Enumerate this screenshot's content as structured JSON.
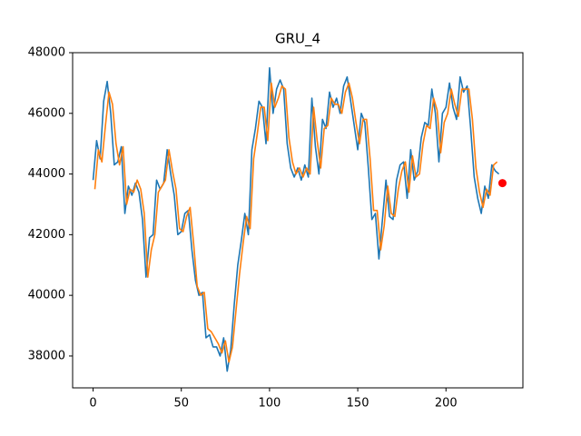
{
  "chart_data": {
    "type": "line",
    "title": "GRU_4",
    "xlim": [
      -11.6,
      243.6
    ],
    "xticks": [
      0,
      50,
      100,
      150,
      200
    ],
    "ylim": [
      36950,
      48000
    ],
    "yticks": [
      38000,
      40000,
      42000,
      44000,
      46000,
      48000
    ],
    "series": [
      {
        "color": "#1f77b4",
        "x": [
          0,
          2,
          4,
          6,
          8,
          10,
          12,
          14,
          16,
          18,
          20,
          22,
          24,
          26,
          28,
          30,
          32,
          34,
          36,
          38,
          40,
          42,
          44,
          46,
          48,
          50,
          52,
          54,
          56,
          58,
          60,
          62,
          64,
          66,
          68,
          70,
          72,
          74,
          76,
          78,
          80,
          82,
          84,
          86,
          88,
          90,
          92,
          94,
          96,
          98,
          100,
          102,
          104,
          106,
          108,
          110,
          112,
          114,
          116,
          118,
          120,
          122,
          124,
          126,
          128,
          130,
          132,
          134,
          136,
          138,
          140,
          142,
          144,
          146,
          148,
          150,
          152,
          154,
          156,
          158,
          160,
          162,
          164,
          166,
          168,
          170,
          172,
          174,
          176,
          178,
          180,
          182,
          184,
          186,
          188,
          190,
          192,
          194,
          196,
          198,
          200,
          202,
          204,
          206,
          208,
          210,
          212,
          214,
          216,
          218,
          220,
          222,
          224,
          226,
          228,
          230
        ],
        "values": [
          43800,
          45100,
          44500,
          46400,
          47050,
          46000,
          44300,
          44400,
          44900,
          42700,
          43600,
          43300,
          43700,
          43400,
          42500,
          40600,
          41900,
          42000,
          43800,
          43500,
          43700,
          44800,
          44000,
          43300,
          42000,
          42100,
          42700,
          42800,
          41500,
          40500,
          40000,
          40100,
          38600,
          38700,
          38300,
          38300,
          38000,
          38600,
          37500,
          38200,
          39700,
          41000,
          41800,
          42700,
          42000,
          44800,
          45500,
          46400,
          46200,
          45000,
          47500,
          46000,
          46800,
          47100,
          46800,
          45000,
          44200,
          43900,
          44200,
          43800,
          44300,
          43900,
          46500,
          44900,
          44000,
          45800,
          45500,
          46700,
          46200,
          46500,
          46000,
          46900,
          47200,
          46400,
          45600,
          44800,
          46000,
          45700,
          44200,
          42500,
          42700,
          41200,
          42500,
          43800,
          42600,
          42500,
          43800,
          44300,
          44400,
          43200,
          44800,
          43800,
          44100,
          45200,
          45700,
          45600,
          46800,
          46000,
          44400,
          46000,
          46200,
          47000,
          46200,
          45800,
          47200,
          46700,
          46900,
          45500,
          43900,
          43200,
          42700,
          43600,
          43200,
          44300,
          44100,
          44000
        ]
      },
      {
        "color": "#ff7f0e",
        "x": [
          1,
          3,
          5,
          7,
          9,
          11,
          13,
          15,
          17,
          19,
          21,
          23,
          25,
          27,
          29,
          31,
          33,
          35,
          37,
          39,
          41,
          43,
          45,
          47,
          49,
          51,
          53,
          55,
          57,
          59,
          61,
          63,
          65,
          67,
          69,
          71,
          73,
          75,
          77,
          79,
          81,
          83,
          85,
          87,
          89,
          91,
          93,
          95,
          97,
          99,
          101,
          103,
          105,
          107,
          109,
          111,
          113,
          115,
          117,
          119,
          121,
          123,
          125,
          127,
          129,
          131,
          133,
          135,
          137,
          139,
          141,
          143,
          145,
          147,
          149,
          151,
          153,
          155,
          157,
          159,
          161,
          163,
          165,
          167,
          169,
          171,
          173,
          175,
          177,
          179,
          181,
          183,
          185,
          187,
          189,
          191,
          193,
          195,
          197,
          199,
          201,
          203,
          205,
          207,
          209,
          211,
          213,
          215,
          217,
          219,
          221,
          223,
          225,
          227,
          229
        ],
        "values": [
          43500,
          44800,
          44400,
          45600,
          46700,
          46300,
          45000,
          44300,
          44900,
          43000,
          43500,
          43400,
          43800,
          43500,
          42700,
          40600,
          41500,
          42000,
          43400,
          43600,
          43800,
          44800,
          44100,
          43500,
          42200,
          42100,
          42600,
          42900,
          41700,
          40300,
          40000,
          40100,
          38900,
          38800,
          38600,
          38400,
          38100,
          38500,
          37800,
          38300,
          39500,
          40700,
          41700,
          42600,
          42200,
          44500,
          45300,
          46200,
          46200,
          45100,
          47000,
          46200,
          46500,
          46900,
          46800,
          45200,
          44400,
          44000,
          44200,
          43900,
          44200,
          44000,
          46200,
          45100,
          44200,
          45500,
          45600,
          46500,
          46300,
          46300,
          46000,
          46700,
          47000,
          46500,
          45700,
          45000,
          45800,
          45800,
          44500,
          42800,
          42800,
          41500,
          42300,
          43600,
          42700,
          42600,
          43500,
          44100,
          44400,
          43400,
          44600,
          43900,
          44000,
          45000,
          45600,
          45500,
          46500,
          46100,
          44700,
          45700,
          46000,
          46800,
          46300,
          45900,
          46800,
          46800,
          46800,
          45800,
          44200,
          43400,
          42900,
          43500,
          43300,
          44300,
          44400
        ]
      }
    ],
    "marker": {
      "x": 232,
      "y": 43700,
      "color": "red"
    }
  }
}
